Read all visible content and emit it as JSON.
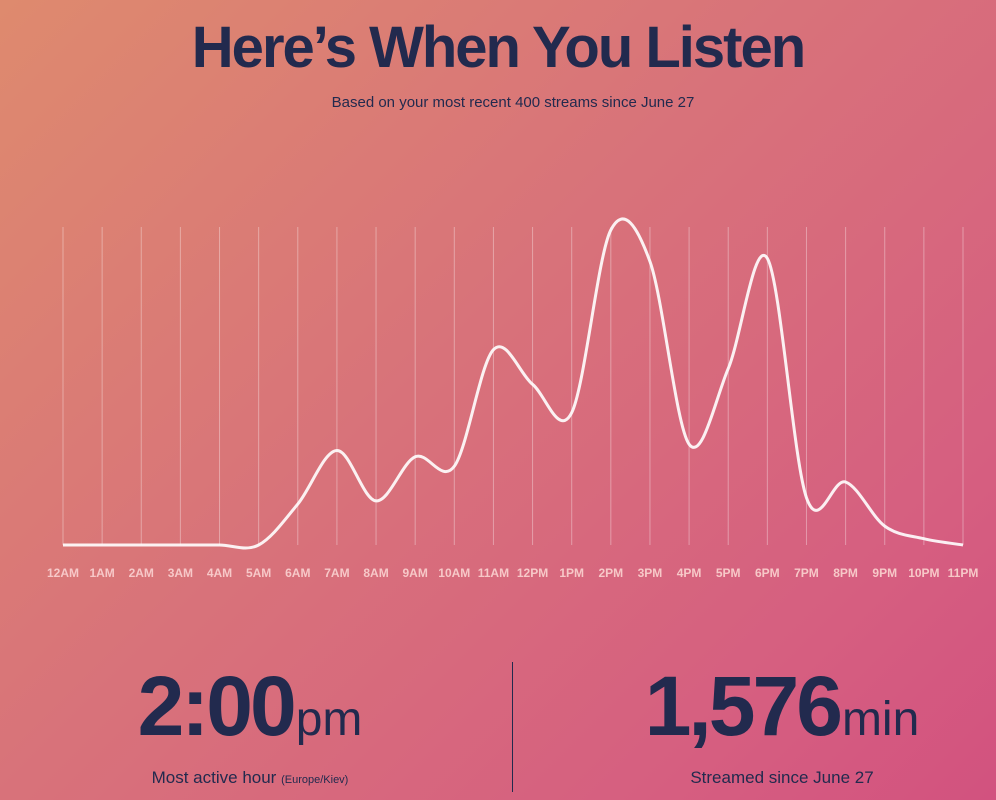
{
  "header": {
    "title": "Here’s When You Listen",
    "subtitle": "Based on your most recent 400 streams since June 27"
  },
  "chart_data": {
    "type": "line",
    "categories": [
      "12AM",
      "1AM",
      "2AM",
      "3AM",
      "4AM",
      "5AM",
      "6AM",
      "7AM",
      "8AM",
      "9AM",
      "10AM",
      "11AM",
      "12PM",
      "1PM",
      "2PM",
      "3PM",
      "4PM",
      "5PM",
      "6PM",
      "7PM",
      "8PM",
      "9PM",
      "10PM",
      "11PM"
    ],
    "values": [
      0,
      0,
      0,
      0,
      0,
      0,
      13,
      30,
      14,
      28,
      25,
      62,
      51,
      42,
      100,
      90,
      32,
      56,
      91,
      15,
      20,
      6,
      2,
      0
    ],
    "ylim": [
      0,
      100
    ],
    "grid": "vertical",
    "colors": {
      "line": "#ffffff",
      "grid": "#ffffff",
      "tick": "#f7c8c8"
    }
  },
  "stats": {
    "active_hour": {
      "value": "2:00",
      "unit": "pm",
      "caption": "Most active hour",
      "timezone": "(Europe/Kiev)"
    },
    "streamed": {
      "value": "1,576",
      "unit": "min",
      "caption": "Streamed since June 27"
    }
  }
}
